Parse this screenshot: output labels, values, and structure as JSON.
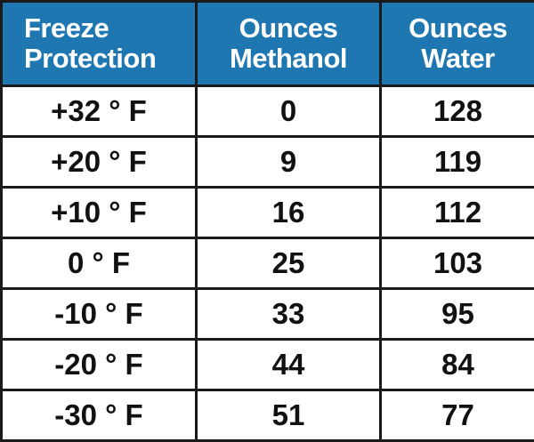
{
  "header": {
    "col1": [
      "Freeze",
      "Protection"
    ],
    "col2": [
      "Ounces",
      "Methanol"
    ],
    "col3": [
      "Ounces",
      "Water"
    ]
  },
  "colors": {
    "header_bg": "#1f77b2",
    "header_text": "#ffffff",
    "border": "#1a1a1a"
  },
  "rows": [
    [
      "+32 ° F",
      "0",
      "128"
    ],
    [
      "+20 ° F",
      "9",
      "119"
    ],
    [
      "+10 ° F",
      "16",
      "112"
    ],
    [
      "0 ° F",
      "25",
      "103"
    ],
    [
      "-10 ° F",
      "33",
      "95"
    ],
    [
      "-20 ° F",
      "44",
      "84"
    ],
    [
      "-30 ° F",
      "51",
      "77"
    ]
  ]
}
